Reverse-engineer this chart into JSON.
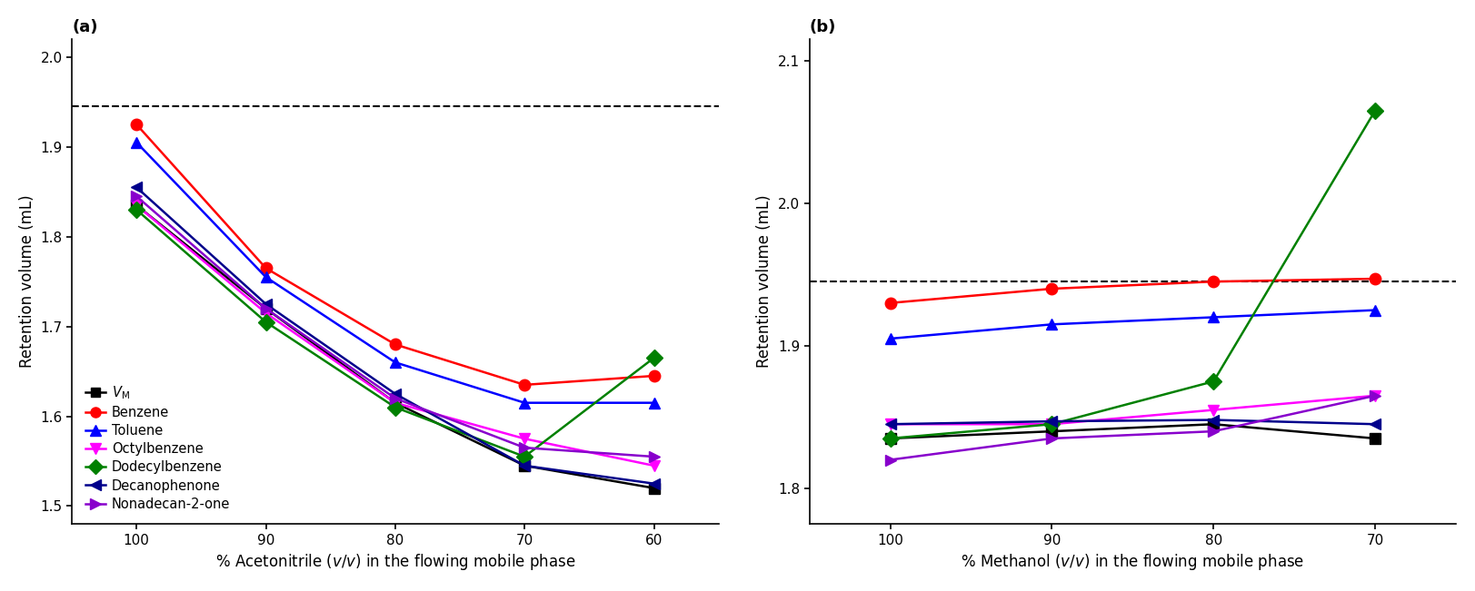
{
  "panel_a": {
    "title": "(a)",
    "xlabel": "% Acetonitrile ($v$/$v$) in the flowing mobile phase",
    "ylabel": "Retention volume (mL)",
    "xvalues": [
      100,
      90,
      80,
      70,
      60
    ],
    "xlim": [
      105,
      55
    ],
    "dashed_line": 1.945,
    "ylim": [
      1.48,
      2.02
    ],
    "yticks": [
      1.5,
      1.6,
      1.7,
      1.8,
      1.9,
      2.0
    ],
    "xticks": [
      100,
      90,
      80,
      70,
      60
    ],
    "series": [
      {
        "label": "$V_{\\mathrm{M}}$",
        "color": "#000000",
        "marker": "s",
        "markersize": 8,
        "values": [
          1.835,
          1.72,
          1.615,
          1.545,
          1.52
        ]
      },
      {
        "label": "Benzene",
        "color": "#ff0000",
        "marker": "o",
        "markersize": 9,
        "values": [
          1.925,
          1.765,
          1.68,
          1.635,
          1.645
        ]
      },
      {
        "label": "Toluene",
        "color": "#0000ff",
        "marker": "^",
        "markersize": 9,
        "values": [
          1.905,
          1.755,
          1.66,
          1.615,
          1.615
        ]
      },
      {
        "label": "Octylbenzene",
        "color": "#ff00ff",
        "marker": "v",
        "markersize": 9,
        "values": [
          1.835,
          1.715,
          1.615,
          1.575,
          1.545
        ]
      },
      {
        "label": "Dodecylbenzene",
        "color": "#008000",
        "marker": "D",
        "markersize": 9,
        "values": [
          1.83,
          1.705,
          1.61,
          1.555,
          1.665
        ]
      },
      {
        "label": "Decanophenone",
        "color": "#00008b",
        "marker": "<",
        "markersize": 9,
        "values": [
          1.855,
          1.725,
          1.625,
          1.545,
          1.525
        ]
      },
      {
        "label": "Nonadecan-2-one",
        "color": "#8800cc",
        "marker": ">",
        "markersize": 9,
        "values": [
          1.845,
          1.72,
          1.62,
          1.565,
          1.555
        ]
      }
    ],
    "legend": true
  },
  "panel_b": {
    "title": "(b)",
    "xlabel": "% Methanol ($v$/$v$) in the flowing mobile phase",
    "ylabel": "Retention volume (mL)",
    "xvalues": [
      100,
      90,
      80,
      70
    ],
    "xlim": [
      105,
      65
    ],
    "dashed_line": 1.945,
    "ylim": [
      1.775,
      2.115
    ],
    "yticks": [
      1.8,
      1.9,
      2.0,
      2.1
    ],
    "xticks": [
      100,
      90,
      80,
      70
    ],
    "series": [
      {
        "label": "$V_{\\mathrm{M}}$",
        "color": "#000000",
        "marker": "s",
        "markersize": 8,
        "values": [
          1.835,
          1.84,
          1.845,
          1.835
        ]
      },
      {
        "label": "Benzene",
        "color": "#ff0000",
        "marker": "o",
        "markersize": 9,
        "values": [
          1.93,
          1.94,
          1.945,
          1.947
        ]
      },
      {
        "label": "Toluene",
        "color": "#0000ff",
        "marker": "^",
        "markersize": 9,
        "values": [
          1.905,
          1.915,
          1.92,
          1.925
        ]
      },
      {
        "label": "Octylbenzene",
        "color": "#ff00ff",
        "marker": "v",
        "markersize": 9,
        "values": [
          1.845,
          1.845,
          1.855,
          1.865
        ]
      },
      {
        "label": "Dodecylbenzene",
        "color": "#008000",
        "marker": "D",
        "markersize": 9,
        "values": [
          1.835,
          1.845,
          1.875,
          2.065
        ]
      },
      {
        "label": "Decanophenone",
        "color": "#00008b",
        "marker": "<",
        "markersize": 9,
        "values": [
          1.845,
          1.847,
          1.848,
          1.845
        ]
      },
      {
        "label": "Nonadecan-2-one",
        "color": "#8800cc",
        "marker": ">",
        "markersize": 9,
        "values": [
          1.82,
          1.835,
          1.84,
          1.865
        ]
      }
    ],
    "legend": false
  },
  "figure_bg": "#ffffff",
  "linewidth": 1.8
}
